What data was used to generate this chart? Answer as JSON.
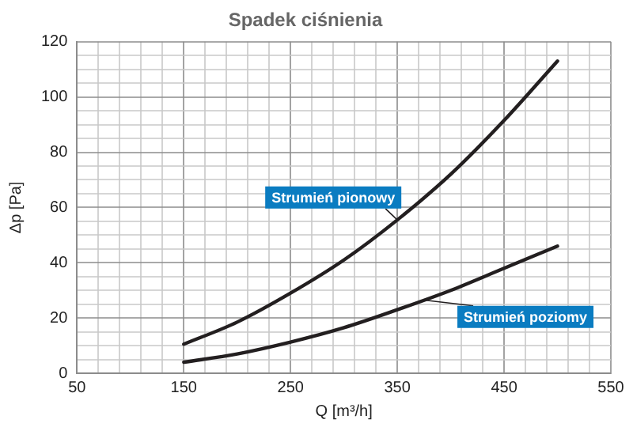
{
  "chart_data": {
    "type": "line",
    "title": "Spadek ciśnienia",
    "xlabel": "Q [m³/h]",
    "ylabel": "Δp [Pa]",
    "xlim": [
      50,
      550
    ],
    "xticks": [
      50,
      {
        "value": 70,
        "label": null
      },
      {
        "value": 90,
        "label": null
      },
      {
        "value": 110,
        "label": null
      },
      {
        "value": 130,
        "label": null
      },
      150,
      {
        "value": 170,
        "label": null
      },
      {
        "value": 190,
        "label": null
      },
      {
        "value": 210,
        "label": null
      },
      {
        "value": 230,
        "label": null
      },
      250,
      {
        "value": 270,
        "label": null
      },
      {
        "value": 290,
        "label": null
      },
      {
        "value": 310,
        "label": null
      },
      {
        "value": 330,
        "label": null
      },
      350,
      {
        "value": 370,
        "label": null
      },
      {
        "value": 390,
        "label": null
      },
      {
        "value": 410,
        "label": null
      },
      {
        "value": 430,
        "label": null
      },
      450,
      {
        "value": 470,
        "label": null
      },
      {
        "value": 490,
        "label": null
      },
      {
        "value": 510,
        "label": null
      },
      {
        "value": 530,
        "label": null
      },
      550
    ],
    "ylim": [
      0,
      120
    ],
    "yticks": [
      0,
      {
        "value": 5,
        "label": null
      },
      {
        "value": 10,
        "label": null
      },
      {
        "value": 15,
        "label": null
      },
      20,
      {
        "value": 25,
        "label": null
      },
      {
        "value": 30,
        "label": null
      },
      {
        "value": 35,
        "label": null
      },
      40,
      {
        "value": 45,
        "label": null
      },
      {
        "value": 50,
        "label": null
      },
      {
        "value": 55,
        "label": null
      },
      60,
      {
        "value": 65,
        "label": null
      },
      {
        "value": 70,
        "label": null
      },
      {
        "value": 75,
        "label": null
      },
      80,
      {
        "value": 85,
        "label": null
      },
      {
        "value": 90,
        "label": null
      },
      {
        "value": 95,
        "label": null
      },
      100,
      {
        "value": 105,
        "label": null
      },
      {
        "value": 110,
        "label": null
      },
      {
        "value": 115,
        "label": null
      },
      120
    ],
    "grid": true,
    "legend": false,
    "marker": "none",
    "line_style": "solid",
    "series": [
      {
        "name": "Strumień pionowy",
        "color": "#231f20",
        "x": [
          150,
          200,
          250,
          300,
          350,
          400,
          450,
          500
        ],
        "values": [
          10.5,
          18.5,
          29,
          41,
          55.5,
          72,
          91.5,
          113
        ]
      },
      {
        "name": "Strumień poziomy",
        "color": "#231f20",
        "x": [
          150,
          200,
          250,
          300,
          350,
          400,
          450,
          500
        ],
        "values": [
          4,
          7,
          11.3,
          16.5,
          23,
          30,
          38,
          46
        ]
      }
    ]
  }
}
